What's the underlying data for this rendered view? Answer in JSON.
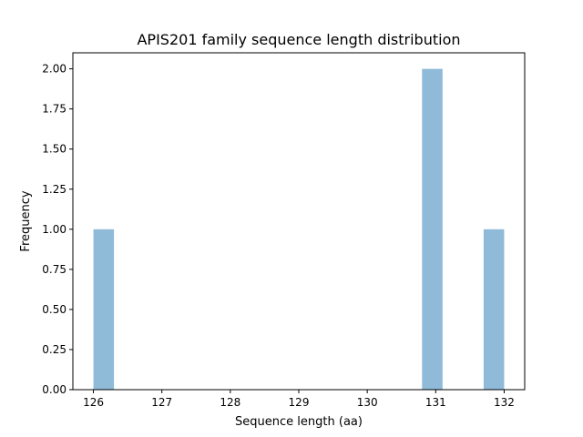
{
  "chart_data": {
    "type": "bar",
    "title": "APIS201 family sequence length distribution",
    "xlabel": "Sequence length (aa)",
    "ylabel": "Frequency",
    "xlim": [
      125.7,
      132.3
    ],
    "ylim": [
      0,
      2.1
    ],
    "xticks": [
      126,
      127,
      128,
      129,
      130,
      131,
      132
    ],
    "xtick_labels": [
      "126",
      "127",
      "128",
      "129",
      "130",
      "131",
      "132"
    ],
    "yticks": [
      0,
      0.25,
      0.5,
      0.75,
      1.0,
      1.25,
      1.5,
      1.75,
      2.0
    ],
    "ytick_labels": [
      "0.00",
      "0.25",
      "0.50",
      "0.75",
      "1.00",
      "1.25",
      "1.50",
      "1.75",
      "2.00"
    ],
    "bins": [
      {
        "start": 126.0,
        "end": 126.3,
        "count": 1
      },
      {
        "start": 130.8,
        "end": 131.1,
        "count": 2
      },
      {
        "start": 131.7,
        "end": 132.0,
        "count": 1
      }
    ],
    "bar_color": "#8fbbd9",
    "grid": false
  }
}
